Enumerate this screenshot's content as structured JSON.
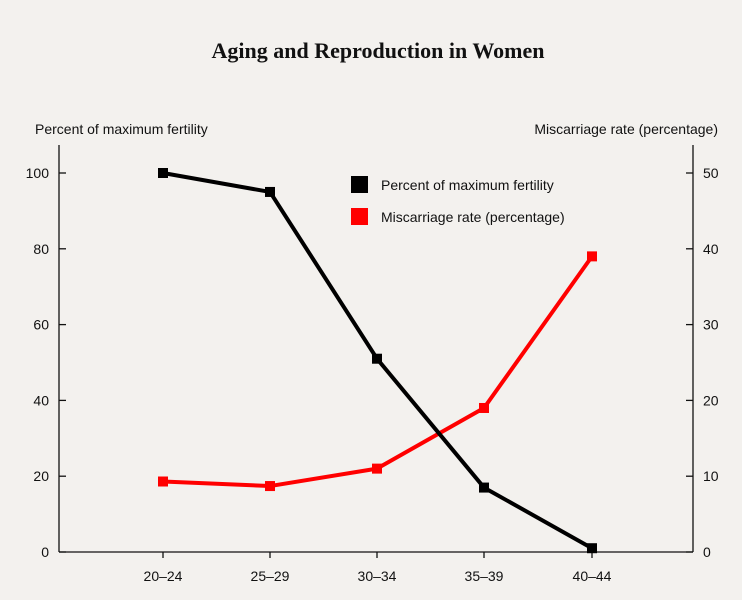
{
  "chart_data": {
    "type": "line",
    "title": "Aging and Reproduction in Women",
    "xlabel": "",
    "ylabel_left": "Percent of maximum fertility",
    "ylabel_right": "Miscarriage rate (percentage)",
    "categories": [
      "20–24",
      "25–29",
      "30–34",
      "35–39",
      "40–44"
    ],
    "y_left_lim": [
      0,
      100
    ],
    "y_left_ticks": [
      0,
      20,
      40,
      60,
      80,
      100
    ],
    "y_right_lim": [
      0,
      50
    ],
    "y_right_ticks": [
      0,
      10,
      20,
      30,
      40,
      50
    ],
    "grid": false,
    "legend_position": "top-right",
    "series": [
      {
        "name": "Percent of maximum fertility",
        "axis": "left",
        "color": "#000000",
        "values": [
          100,
          95,
          51,
          17,
          1
        ]
      },
      {
        "name": "Miscarriage rate (percentage)",
        "axis": "right",
        "color": "#ff0000",
        "values": [
          9.3,
          8.7,
          11,
          19,
          39
        ]
      }
    ]
  }
}
